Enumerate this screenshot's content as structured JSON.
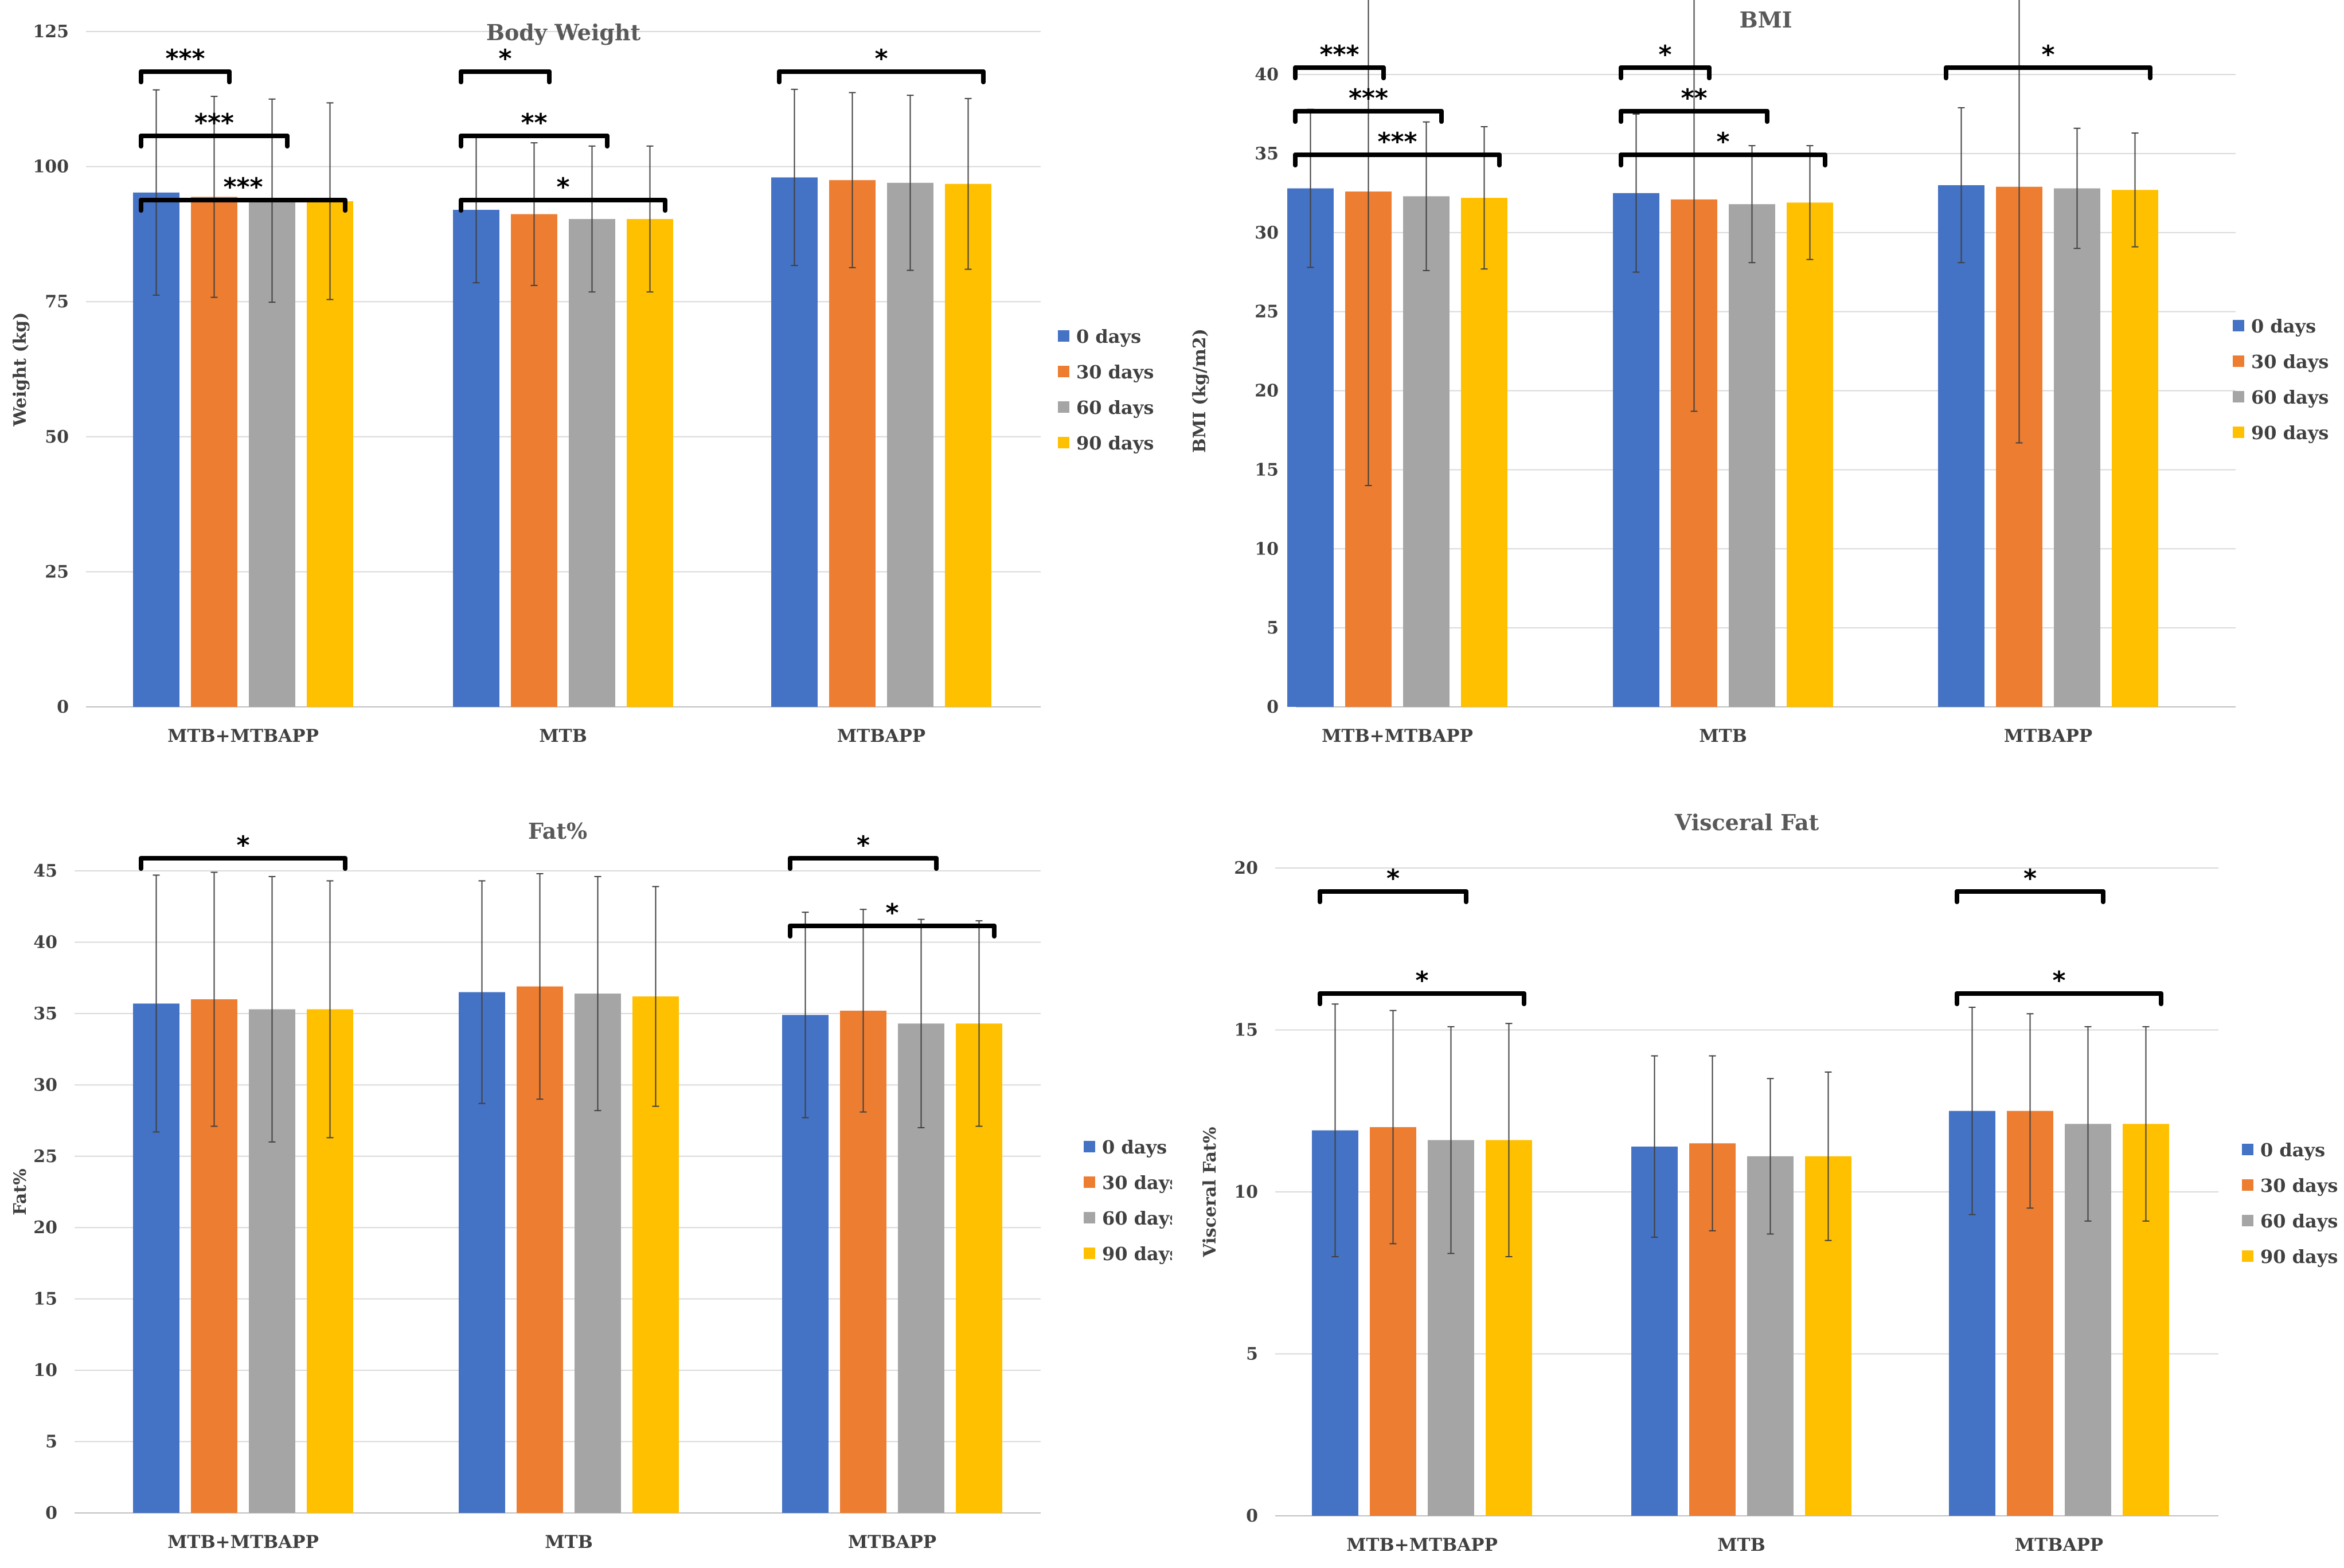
{
  "colors": {
    "series": [
      "#4472C4",
      "#ED7D31",
      "#A5A5A5",
      "#FFC000"
    ]
  },
  "legend": [
    "0 days",
    "30 days",
    "60 days",
    "90 days"
  ],
  "chart_data": [
    {
      "type": "bar",
      "title": "Body Weight",
      "ylabel": "Weight (kg)",
      "xlabel": "",
      "ylim": [
        0,
        125
      ],
      "yticks": [
        0,
        25,
        50,
        75,
        100,
        125
      ],
      "categories": [
        "MTB+MTBAPP",
        "MTB",
        "MTBAPP"
      ],
      "series": [
        {
          "name": "0 days",
          "values": [
            95.2,
            92.0,
            98.0
          ],
          "errors": [
            19.0,
            13.5,
            16.3
          ]
        },
        {
          "name": "30 days",
          "values": [
            94.4,
            91.2,
            97.5
          ],
          "errors": [
            18.6,
            13.2,
            16.2
          ]
        },
        {
          "name": "60 days",
          "values": [
            93.7,
            90.3,
            97.0
          ],
          "errors": [
            18.8,
            13.5,
            16.2
          ]
        },
        {
          "name": "90 days",
          "values": [
            93.6,
            90.3,
            96.8
          ],
          "errors": [
            18.2,
            13.5,
            15.8
          ]
        }
      ],
      "significance": [
        {
          "group": 0,
          "from": 0,
          "to": 1,
          "label": "***"
        },
        {
          "group": 0,
          "from": 0,
          "to": 2,
          "label": "***"
        },
        {
          "group": 0,
          "from": 0,
          "to": 3,
          "label": "***"
        },
        {
          "group": 1,
          "from": 0,
          "to": 1,
          "label": "*"
        },
        {
          "group": 1,
          "from": 0,
          "to": 2,
          "label": "**"
        },
        {
          "group": 1,
          "from": 0,
          "to": 3,
          "label": "*"
        },
        {
          "group": 2,
          "from": 0,
          "to": 3,
          "label": "*"
        }
      ]
    },
    {
      "type": "bar",
      "title": "BMI",
      "ylabel": "BMI (kg/m2)",
      "xlabel": "",
      "ylim": [
        0,
        40
      ],
      "yticks": [
        0,
        5,
        10,
        15,
        20,
        25,
        30,
        35,
        40
      ],
      "categories": [
        "MTB+MTBAPP",
        "MTB",
        "MTBAPP"
      ],
      "series": [
        {
          "name": "0 days",
          "values": [
            32.8,
            32.5,
            33.0
          ],
          "errors": [
            5.0,
            5.0,
            4.9
          ]
        },
        {
          "name": "30 days",
          "values": [
            32.6,
            32.1,
            32.9
          ],
          "errors": [
            18.6,
            13.4,
            16.2
          ]
        },
        {
          "name": "60 days",
          "values": [
            32.3,
            31.8,
            32.8
          ],
          "errors": [
            4.7,
            3.7,
            3.8
          ]
        },
        {
          "name": "90 days",
          "values": [
            32.2,
            31.9,
            32.7
          ],
          "errors": [
            4.5,
            3.6,
            3.6
          ]
        }
      ],
      "significance": [
        {
          "group": 0,
          "from": 0,
          "to": 1,
          "label": "***"
        },
        {
          "group": 0,
          "from": 0,
          "to": 2,
          "label": "***"
        },
        {
          "group": 0,
          "from": 0,
          "to": 3,
          "label": "***"
        },
        {
          "group": 1,
          "from": 0,
          "to": 1,
          "label": "*"
        },
        {
          "group": 1,
          "from": 0,
          "to": 2,
          "label": "**"
        },
        {
          "group": 1,
          "from": 0,
          "to": 3,
          "label": "*"
        },
        {
          "group": 2,
          "from": 0,
          "to": 3,
          "label": "*"
        }
      ]
    },
    {
      "type": "bar",
      "title": "Fat%",
      "ylabel": "Fat%",
      "xlabel": "",
      "ylim": [
        0,
        45
      ],
      "yticks": [
        0,
        5,
        10,
        15,
        20,
        25,
        30,
        35,
        40,
        45
      ],
      "categories": [
        "MTB+MTBAPP",
        "MTB",
        "MTBAPP"
      ],
      "series": [
        {
          "name": "0 days",
          "values": [
            35.7,
            36.5,
            34.9
          ],
          "errors": [
            9.0,
            7.8,
            7.2
          ]
        },
        {
          "name": "30 days",
          "values": [
            36.0,
            36.9,
            35.2
          ],
          "errors": [
            8.9,
            7.9,
            7.1
          ]
        },
        {
          "name": "60 days",
          "values": [
            35.3,
            36.4,
            34.3
          ],
          "errors": [
            9.3,
            8.2,
            7.3
          ]
        },
        {
          "name": "90 days",
          "values": [
            35.3,
            36.2,
            34.3
          ],
          "errors": [
            9.0,
            7.7,
            7.2
          ]
        }
      ],
      "significance": [
        {
          "group": 0,
          "from": 0,
          "to": 3,
          "label": "*"
        },
        {
          "group": 2,
          "from": 0,
          "to": 2,
          "label": "*"
        },
        {
          "group": 2,
          "from": 0,
          "to": 3,
          "label": "*"
        }
      ]
    },
    {
      "type": "bar",
      "title": "Visceral Fat",
      "ylabel": "Visceral Fat%",
      "xlabel": "",
      "ylim": [
        0,
        20
      ],
      "yticks": [
        0,
        5,
        10,
        15,
        20
      ],
      "categories": [
        "MTB+MTBAPP",
        "MTB",
        "MTBAPP"
      ],
      "series": [
        {
          "name": "0 days",
          "values": [
            11.9,
            11.4,
            12.5
          ],
          "errors": [
            3.9,
            2.8,
            3.2
          ]
        },
        {
          "name": "30 days",
          "values": [
            12.0,
            11.5,
            12.5
          ],
          "errors": [
            3.6,
            2.7,
            3.0
          ]
        },
        {
          "name": "60 days",
          "values": [
            11.6,
            11.1,
            12.1
          ],
          "errors": [
            3.5,
            2.4,
            3.0
          ]
        },
        {
          "name": "90 days",
          "values": [
            11.6,
            11.1,
            12.1
          ],
          "errors": [
            3.6,
            2.6,
            3.0
          ]
        }
      ],
      "significance": [
        {
          "group": 0,
          "from": 0,
          "to": 2,
          "label": "*"
        },
        {
          "group": 0,
          "from": 0,
          "to": 3,
          "label": "*"
        },
        {
          "group": 2,
          "from": 0,
          "to": 2,
          "label": "*"
        },
        {
          "group": 2,
          "from": 0,
          "to": 3,
          "label": "*"
        }
      ]
    }
  ]
}
